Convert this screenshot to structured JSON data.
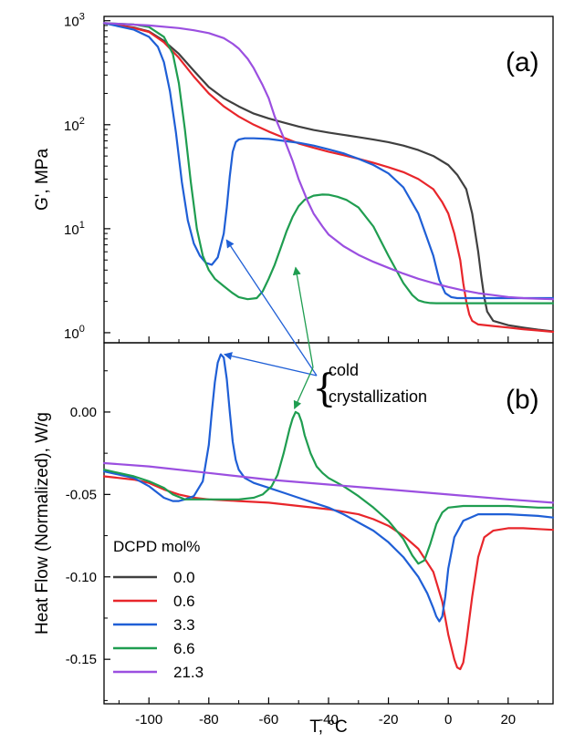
{
  "chart_data": [
    {
      "panel_label": "(a)",
      "type": "line",
      "ylabel": "G', MPa",
      "yscale": "log",
      "xlim": [
        -115,
        35
      ],
      "ylim": [
        0.8,
        1100
      ],
      "y_ticks": [
        {
          "value": 1,
          "mantissa": "10",
          "exp": "0"
        },
        {
          "value": 10,
          "mantissa": "10",
          "exp": "1"
        },
        {
          "value": 100,
          "mantissa": "10",
          "exp": "2"
        },
        {
          "value": 1000,
          "mantissa": "10",
          "exp": "3"
        }
      ],
      "series": [
        {
          "name": "0.0",
          "color": "#404040",
          "x": [
            -115,
            -105,
            -100,
            -95,
            -90,
            -85,
            -80,
            -75,
            -70,
            -65,
            -60,
            -55,
            -50,
            -45,
            -40,
            -35,
            -30,
            -25,
            -20,
            -15,
            -10,
            -5,
            0,
            3,
            6,
            8,
            10,
            11,
            12,
            13,
            15,
            20,
            25,
            30,
            35
          ],
          "y": [
            950,
            860,
            790,
            640,
            480,
            330,
            230,
            180,
            150,
            128,
            115,
            105,
            96,
            89,
            84,
            80,
            76,
            72,
            68,
            63,
            57,
            50,
            41,
            33,
            24,
            14,
            6,
            3.5,
            2.2,
            1.6,
            1.3,
            1.18,
            1.12,
            1.07,
            1.03
          ]
        },
        {
          "name": "0.6",
          "color": "#e8262b",
          "x": [
            -115,
            -105,
            -100,
            -95,
            -90,
            -85,
            -80,
            -75,
            -70,
            -65,
            -60,
            -55,
            -50,
            -45,
            -40,
            -35,
            -30,
            -25,
            -20,
            -15,
            -10,
            -5,
            -2,
            0,
            2,
            4,
            5,
            6,
            7,
            8,
            10,
            15,
            20,
            25,
            30,
            35
          ],
          "y": [
            950,
            850,
            780,
            620,
            440,
            290,
            200,
            150,
            120,
            100,
            86,
            75,
            66,
            60,
            55,
            51,
            47,
            43,
            39,
            35,
            30,
            24,
            18,
            14,
            9,
            5,
            3,
            2,
            1.5,
            1.3,
            1.2,
            1.16,
            1.12,
            1.08,
            1.05,
            1.02
          ]
        },
        {
          "name": "3.3",
          "color": "#1f5fd6",
          "x": [
            -115,
            -105,
            -100,
            -97,
            -95,
            -93,
            -91,
            -89,
            -87,
            -85,
            -83,
            -81,
            -79,
            -77,
            -75,
            -74,
            -73,
            -72,
            -71,
            -70,
            -68,
            -65,
            -60,
            -55,
            -50,
            -45,
            -40,
            -35,
            -30,
            -25,
            -20,
            -15,
            -10,
            -5,
            -3,
            -1,
            1,
            3,
            5,
            10,
            20,
            30,
            35
          ],
          "y": [
            950,
            820,
            700,
            560,
            400,
            210,
            85,
            28,
            12,
            7.2,
            5.5,
            4.7,
            4.5,
            5.3,
            9,
            16,
            32,
            55,
            68,
            72,
            74,
            74,
            73,
            70,
            67,
            63,
            58,
            53,
            47,
            41,
            34,
            25,
            14,
            5.5,
            3.2,
            2.4,
            2.2,
            2.15,
            2.15,
            2.15,
            2.15,
            2.15,
            2.15
          ]
        },
        {
          "name": "6.6",
          "color": "#1f9d50",
          "x": [
            -115,
            -105,
            -100,
            -95,
            -92,
            -90,
            -88,
            -86,
            -84,
            -82,
            -80,
            -78,
            -75,
            -72,
            -70,
            -67,
            -64,
            -62,
            -60,
            -58,
            -56,
            -54,
            -52,
            -50,
            -48,
            -45,
            -42,
            -40,
            -37,
            -34,
            -30,
            -25,
            -20,
            -15,
            -12,
            -10,
            -8,
            -6,
            -4,
            -2,
            0,
            5,
            10,
            20,
            30,
            35
          ],
          "y": [
            950,
            920,
            870,
            700,
            480,
            250,
            90,
            28,
            10,
            5.5,
            4,
            3.3,
            2.8,
            2.4,
            2.2,
            2.1,
            2.15,
            2.5,
            3.3,
            4.5,
            6.5,
            9.5,
            13,
            16.5,
            19,
            20.8,
            21.3,
            21.2,
            20.3,
            18.9,
            16,
            10.5,
            5.5,
            3,
            2.3,
            2.05,
            1.97,
            1.93,
            1.92,
            1.92,
            1.92,
            1.92,
            1.92,
            1.92,
            1.92,
            1.92
          ]
        },
        {
          "name": "21.3",
          "color": "#9b4fe0",
          "x": [
            -115,
            -100,
            -90,
            -85,
            -80,
            -75,
            -72,
            -70,
            -67,
            -65,
            -62,
            -60,
            -58,
            -55,
            -52,
            -50,
            -47,
            -45,
            -42,
            -40,
            -35,
            -30,
            -25,
            -20,
            -15,
            -10,
            -5,
            0,
            5,
            10,
            15,
            20,
            25,
            30,
            35
          ],
          "y": [
            950,
            900,
            850,
            810,
            760,
            680,
            600,
            540,
            430,
            350,
            240,
            180,
            120,
            75,
            45,
            30,
            18.5,
            14,
            10.5,
            8.8,
            6.8,
            5.6,
            4.8,
            4.2,
            3.7,
            3.3,
            3.0,
            2.75,
            2.55,
            2.4,
            2.3,
            2.2,
            2.15,
            2.12,
            2.1
          ]
        }
      ],
      "annotation": {
        "arrow_targets": [
          [
            -75,
            7.8
          ],
          [
            -51,
            4.6
          ]
        ]
      }
    },
    {
      "panel_label": "(b)",
      "type": "line",
      "ylabel": "Heat Flow (Normalized), W/g",
      "xlabel": "T, °C",
      "xlim": [
        -115,
        35
      ],
      "ylim": [
        -0.177,
        0.042
      ],
      "x_ticks": [
        {
          "value": -100,
          "label": "-100"
        },
        {
          "value": -80,
          "label": "-80"
        },
        {
          "value": -60,
          "label": "-60"
        },
        {
          "value": -40,
          "label": "-40"
        },
        {
          "value": -20,
          "label": "-20"
        },
        {
          "value": 0,
          "label": "0"
        },
        {
          "value": 20,
          "label": "20"
        }
      ],
      "y_ticks": [
        {
          "value": 0.0,
          "label": "0.00"
        },
        {
          "value": -0.05,
          "label": "-0.05"
        },
        {
          "value": -0.1,
          "label": "-0.10"
        },
        {
          "value": -0.15,
          "label": "-0.15"
        }
      ],
      "series": [
        {
          "name": "0.6",
          "color": "#e8262b",
          "x": [
            -115,
            -105,
            -100,
            -95,
            -90,
            -85,
            -80,
            -70,
            -60,
            -50,
            -40,
            -30,
            -25,
            -20,
            -15,
            -10,
            -5,
            -2,
            0,
            2,
            3,
            4,
            5,
            6,
            8,
            10,
            12,
            15,
            20,
            25,
            30,
            35
          ],
          "y": [
            -0.039,
            -0.041,
            -0.043,
            -0.047,
            -0.05,
            -0.052,
            -0.053,
            -0.054,
            -0.055,
            -0.057,
            -0.059,
            -0.062,
            -0.065,
            -0.069,
            -0.075,
            -0.083,
            -0.097,
            -0.115,
            -0.135,
            -0.15,
            -0.155,
            -0.156,
            -0.152,
            -0.14,
            -0.112,
            -0.088,
            -0.076,
            -0.072,
            -0.0705,
            -0.0705,
            -0.071,
            -0.0715
          ]
        },
        {
          "name": "3.3",
          "color": "#1f5fd6",
          "x": [
            -115,
            -105,
            -100,
            -95,
            -92,
            -90,
            -88,
            -85,
            -82,
            -80,
            -79,
            -78,
            -77,
            -76,
            -75,
            -74,
            -73,
            -72,
            -71,
            -70,
            -68,
            -65,
            -60,
            -55,
            -50,
            -45,
            -40,
            -35,
            -30,
            -25,
            -20,
            -15,
            -10,
            -7,
            -5,
            -4,
            -3,
            -2,
            -1,
            0,
            2,
            5,
            10,
            20,
            30,
            35
          ],
          "y": [
            -0.036,
            -0.04,
            -0.045,
            -0.052,
            -0.054,
            -0.054,
            -0.053,
            -0.051,
            -0.042,
            -0.02,
            0.0,
            0.018,
            0.03,
            0.035,
            0.033,
            0.02,
            0.0,
            -0.018,
            -0.029,
            -0.035,
            -0.04,
            -0.043,
            -0.046,
            -0.049,
            -0.052,
            -0.055,
            -0.058,
            -0.062,
            -0.067,
            -0.072,
            -0.079,
            -0.088,
            -0.1,
            -0.11,
            -0.119,
            -0.124,
            -0.127,
            -0.124,
            -0.112,
            -0.095,
            -0.076,
            -0.066,
            -0.062,
            -0.062,
            -0.063,
            -0.064
          ]
        },
        {
          "name": "6.6",
          "color": "#1f9d50",
          "x": [
            -115,
            -105,
            -100,
            -95,
            -92,
            -88,
            -85,
            -80,
            -75,
            -70,
            -65,
            -62,
            -59,
            -57,
            -55,
            -53,
            -52,
            -51,
            -50,
            -49,
            -48,
            -46,
            -44,
            -42,
            -40,
            -35,
            -30,
            -25,
            -20,
            -15,
            -12,
            -10,
            -8,
            -6,
            -4,
            -2,
            0,
            5,
            10,
            20,
            30,
            35
          ],
          "y": [
            -0.035,
            -0.039,
            -0.042,
            -0.046,
            -0.05,
            -0.053,
            -0.053,
            -0.053,
            -0.053,
            -0.053,
            -0.052,
            -0.05,
            -0.045,
            -0.038,
            -0.025,
            -0.01,
            -0.004,
            0.0,
            -0.001,
            -0.006,
            -0.014,
            -0.025,
            -0.033,
            -0.037,
            -0.04,
            -0.045,
            -0.051,
            -0.058,
            -0.066,
            -0.077,
            -0.087,
            -0.092,
            -0.09,
            -0.08,
            -0.068,
            -0.061,
            -0.058,
            -0.057,
            -0.057,
            -0.057,
            -0.058,
            -0.058
          ]
        },
        {
          "name": "21.3",
          "color": "#9b4fe0",
          "x": [
            -115,
            -100,
            -80,
            -60,
            -40,
            -20,
            0,
            20,
            35
          ],
          "y": [
            -0.031,
            -0.033,
            -0.037,
            -0.041,
            -0.044,
            -0.047,
            -0.05,
            -0.053,
            -0.055
          ]
        }
      ],
      "annotation": {
        "text_line1": "cold",
        "text_line2": "crystallization",
        "arrow_targets": [
          [
            -76,
            0.035
          ],
          [
            -52,
            0.001
          ]
        ]
      }
    }
  ],
  "legend": {
    "title": "DCPD mol%",
    "placement": "bottom-left",
    "entries": [
      {
        "label": "0.0",
        "color": "#404040"
      },
      {
        "label": "0.6",
        "color": "#e8262b"
      },
      {
        "label": "3.3",
        "color": "#1f5fd6"
      },
      {
        "label": "6.6",
        "color": "#1f9d50"
      },
      {
        "label": "21.3",
        "color": "#9b4fe0"
      }
    ]
  }
}
